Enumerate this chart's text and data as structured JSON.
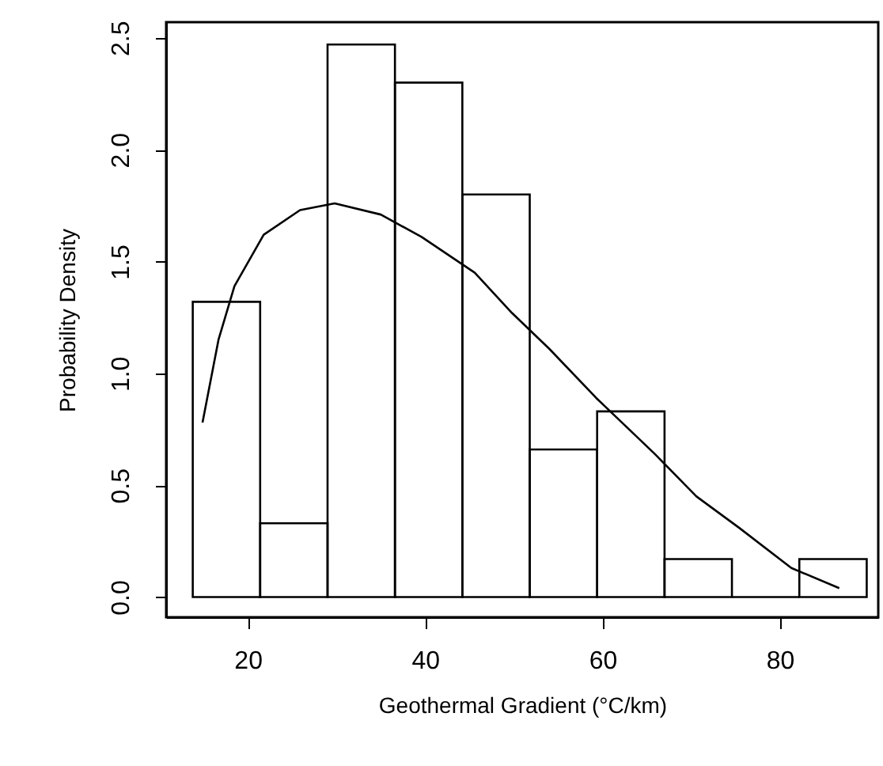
{
  "chart_data": {
    "type": "histogram",
    "xlabel": "Geothermal Gradient (°C/km)",
    "ylabel": "Probability Density",
    "bins": [
      13.8,
      21.4,
      29.0,
      36.6,
      44.2,
      51.8,
      59.4,
      67.0,
      74.6,
      82.2,
      89.8
    ],
    "values": [
      1.32,
      0.33,
      2.47,
      2.3,
      1.8,
      0.66,
      0.83,
      0.17,
      0,
      0.17
    ],
    "color": "#000000",
    "series": [
      {
        "type": "line",
        "color": "#000000",
        "x": [
          14.9,
          16.7,
          18.5,
          21.8,
          25.9,
          29.8,
          35.0,
          39.6,
          45.6,
          49.8,
          54.0,
          59.3,
          65.9,
          70.6,
          75.4,
          81.3,
          86.7
        ],
        "values": [
          0.78,
          1.15,
          1.39,
          1.62,
          1.73,
          1.76,
          1.71,
          1.61,
          1.45,
          1.27,
          1.11,
          0.89,
          0.64,
          0.45,
          0.31,
          0.13,
          0.04
        ]
      }
    ],
    "xlim": [
      10.8,
      91.1
    ],
    "ylim": [
      -0.09,
      2.57
    ],
    "xticks": [
      20,
      40,
      60,
      80
    ],
    "yticks": [
      {
        "value": 0,
        "label": "0.0"
      },
      {
        "value": 0.5,
        "label": "0.5"
      },
      {
        "value": 1,
        "label": "1.0"
      },
      {
        "value": 1.5,
        "label": "1.5"
      },
      {
        "value": 2,
        "label": "2.0"
      },
      {
        "value": 2.5,
        "label": "2.5"
      }
    ],
    "grid": false
  }
}
